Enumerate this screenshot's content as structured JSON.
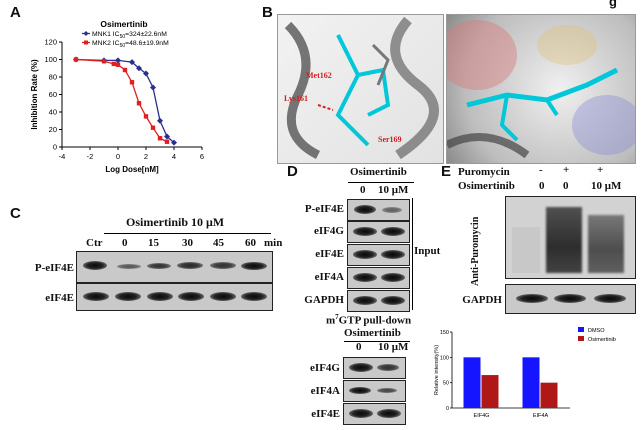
{
  "panels": {
    "a": "A",
    "b": "B",
    "c": "C",
    "d": "D",
    "e": "E"
  },
  "panel_b_extra": "g",
  "chart_data": [
    {
      "type": "line",
      "title": "Osimertinib",
      "xlabel": "Log Dose[nM]",
      "ylabel": "Inhibition Rate (%)",
      "xlim": [
        -4,
        6
      ],
      "ylim": [
        0,
        120
      ],
      "xticks": [
        -4,
        -2,
        0,
        2,
        4,
        6
      ],
      "yticks": [
        0,
        20,
        40,
        60,
        80,
        100,
        120
      ],
      "series": [
        {
          "name": "MNK1 IC50=324±22.6nM",
          "legend_pre": "MNK1 IC",
          "legend_sub": "50",
          "legend_post": "=324±22.6nM",
          "color": "#2b2f8f",
          "marker": "diamond",
          "x": [
            -3,
            -1,
            0,
            1,
            1.5,
            2,
            2.5,
            3,
            3.5,
            4
          ],
          "y": [
            100,
            99,
            99,
            97,
            90,
            84,
            68,
            30,
            12,
            5
          ]
        },
        {
          "name": "MNK2 IC50=48.6±19.9nM",
          "legend_pre": "MNK2 IC",
          "legend_sub": "50",
          "legend_post": "=48.6±19.9nM",
          "color": "#e02020",
          "marker": "square",
          "x": [
            -3,
            -1,
            -0.3,
            0,
            0.5,
            1,
            1.5,
            2,
            2.5,
            3,
            3.5
          ],
          "y": [
            100,
            98,
            95,
            94,
            88,
            74,
            50,
            35,
            22,
            10,
            6
          ]
        }
      ]
    },
    {
      "type": "bar",
      "categories": [
        "EIF4G",
        "EIF4A"
      ],
      "series": [
        {
          "name": "DMSO",
          "color": "#1515ff",
          "values": [
            100,
            100
          ]
        },
        {
          "name": "Osimertinib",
          "color": "#b01818",
          "values": [
            65,
            50
          ]
        }
      ],
      "ylabel": "Relative intensity(%)",
      "ylim": [
        0,
        150
      ],
      "yticks": [
        0,
        50,
        100,
        150
      ]
    }
  ],
  "panel_b": {
    "labels": [
      "Met162",
      "Lys161",
      "Ser169"
    ]
  },
  "panel_c": {
    "treatment": "Osimertinib 10 μM",
    "lanes": [
      "Ctr",
      "0",
      "15",
      "30",
      "45",
      "60"
    ],
    "unit": "min",
    "rows": [
      "P-eIF4E",
      "eIF4E"
    ]
  },
  "panel_d": {
    "treatment": "Osimertinib",
    "lanes": [
      "0",
      "10 μM"
    ],
    "input_rows": [
      "P-eIF4E",
      "eIF4G",
      "eIF4E",
      "eIF4A",
      "GAPDH"
    ],
    "input_label": "Input",
    "pulldown_title_sup": "7",
    "pulldown_title_pre": "m",
    "pulldown_title_post": "GTP pull-down",
    "pulldown_treatment": "Osimertinib",
    "pulldown_lanes": [
      "0",
      "10 μM"
    ],
    "pulldown_rows": [
      "eIF4G",
      "eIF4A",
      "eIF4E"
    ]
  },
  "panel_e": {
    "rows": [
      {
        "label": "Puromycin",
        "values": [
          "-",
          "+",
          "+"
        ]
      },
      {
        "label": "Osimertinib",
        "values": [
          "0",
          "0",
          "10 μM"
        ]
      }
    ],
    "blot_label": "Anti-Puromycin",
    "loading_label": "GAPDH"
  }
}
